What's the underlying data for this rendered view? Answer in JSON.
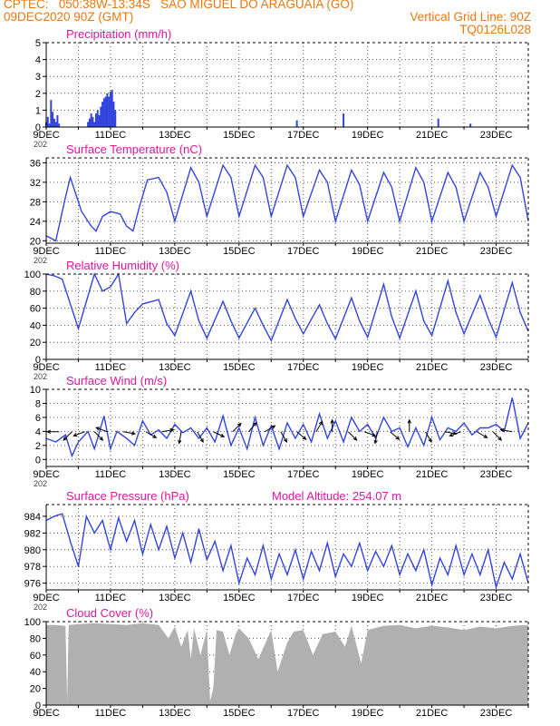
{
  "header": {
    "line1_left": "CPTEC:   050:38W-13:34S   SAO MIGUEL DO ARAGUAIA (GO)",
    "line2_left": "09DEC2020 90Z (GMT)",
    "line2_right": "Vertical Grid Line: 90Z",
    "line3_right": "TQ0126L028"
  },
  "colors": {
    "header": "#e8780e",
    "title": "#e0169f",
    "series": "#3344dd",
    "cloud": "#b0b0b0",
    "grid": "#555555"
  },
  "x_dates": [
    "9DEC",
    "11DEC",
    "13DEC",
    "15DEC",
    "17DEC",
    "19DEC",
    "21DEC",
    "23DEC"
  ],
  "x_year_stub": "202",
  "chart_data": [
    {
      "type": "bar",
      "title": "Precipitation (mm/h)",
      "xlabel": "",
      "ylabel": "",
      "x_range_days": [
        9,
        24
      ],
      "ylim": [
        0,
        5
      ],
      "yticks": [
        0,
        1,
        2,
        3,
        4,
        5
      ],
      "grid": true,
      "x": [
        9.0,
        9.05,
        9.1,
        9.15,
        9.2,
        9.25,
        9.3,
        9.35,
        9.4,
        10.3,
        10.35,
        10.4,
        10.45,
        10.5,
        10.55,
        10.6,
        10.65,
        10.7,
        10.75,
        10.8,
        10.85,
        10.9,
        10.95,
        11.0,
        11.05,
        11.1,
        11.15,
        16.8,
        18.25,
        21.2,
        22.2
      ],
      "values": [
        0.3,
        0.6,
        0.2,
        1.6,
        0.9,
        0.5,
        0.3,
        0.7,
        0.2,
        0.3,
        0.5,
        0.8,
        0.6,
        0.3,
        0.8,
        1.0,
        0.7,
        1.2,
        1.5,
        1.7,
        1.8,
        2.0,
        1.8,
        2.1,
        2.2,
        1.5,
        1.0,
        0.4,
        0.8,
        0.5,
        0.2
      ]
    },
    {
      "type": "line",
      "title": "Surface Temperature (nC)",
      "xlabel": "",
      "ylabel": "",
      "x_range_days": [
        9,
        24
      ],
      "ylim": [
        19.5,
        37
      ],
      "yticks": [
        20,
        24,
        28,
        32,
        36
      ],
      "grid": true,
      "x": [
        9.0,
        9.3,
        9.6,
        9.75,
        10.1,
        10.4,
        10.55,
        10.75,
        11.0,
        11.3,
        11.5,
        11.7,
        11.9,
        12.15,
        12.5,
        12.75,
        13.0,
        13.5,
        13.75,
        14.0,
        14.5,
        14.75,
        15.0,
        15.5,
        15.75,
        16.0,
        16.5,
        16.75,
        17.0,
        17.5,
        17.75,
        18.0,
        18.5,
        18.75,
        19.0,
        19.5,
        19.75,
        20.0,
        20.5,
        20.75,
        21.0,
        21.5,
        21.75,
        22.0,
        22.5,
        22.75,
        23.0,
        23.5,
        23.75,
        24.0
      ],
      "values": [
        21,
        20,
        29,
        33,
        26,
        23,
        22,
        25,
        26,
        25.5,
        23,
        22,
        27,
        32.5,
        33,
        30,
        24,
        35,
        32,
        25,
        35.5,
        33,
        25,
        35.5,
        33,
        25,
        35.5,
        33,
        25,
        34.5,
        32,
        24,
        34.5,
        31.5,
        24,
        34,
        31,
        24,
        35,
        32,
        24,
        34,
        31,
        24,
        34,
        31,
        25,
        35.5,
        33,
        24
      ]
    },
    {
      "type": "line",
      "title": "Relative Humidity (%)",
      "xlabel": "",
      "ylabel": "",
      "x_range_days": [
        9,
        24
      ],
      "ylim": [
        0,
        100
      ],
      "yticks": [
        0,
        20,
        40,
        60,
        80,
        100
      ],
      "grid": true,
      "x": [
        9.0,
        9.25,
        9.5,
        10.0,
        10.5,
        10.75,
        11.0,
        11.25,
        11.5,
        11.75,
        12.0,
        12.5,
        12.75,
        13.0,
        13.5,
        13.75,
        14.0,
        14.5,
        14.75,
        15.0,
        15.5,
        15.75,
        16.0,
        16.5,
        16.75,
        17.0,
        17.5,
        17.75,
        18.0,
        18.5,
        18.75,
        19.0,
        19.5,
        19.75,
        20.0,
        20.5,
        20.75,
        21.0,
        21.5,
        21.75,
        22.0,
        22.5,
        22.75,
        23.0,
        23.5,
        23.75,
        24.0
      ],
      "values": [
        100,
        98,
        94,
        36,
        100,
        80,
        85,
        100,
        42,
        55,
        65,
        70,
        42,
        28,
        80,
        45,
        25,
        68,
        45,
        25,
        60,
        40,
        22,
        70,
        48,
        30,
        64,
        42,
        24,
        72,
        45,
        26,
        88,
        50,
        25,
        80,
        45,
        28,
        92,
        55,
        30,
        75,
        48,
        26,
        90,
        55,
        33
      ]
    },
    {
      "type": "line",
      "title": "Surface Wind (m/s)",
      "xlabel": "",
      "ylabel": "",
      "x_range_days": [
        9,
        24
      ],
      "ylim": [
        -1,
        10
      ],
      "yticks": [
        0,
        2,
        4,
        6,
        8,
        10
      ],
      "grid": true,
      "x": [
        9.0,
        9.3,
        9.6,
        9.8,
        10.0,
        10.3,
        10.5,
        10.6,
        10.8,
        11.0,
        11.2,
        11.5,
        11.75,
        12.0,
        12.25,
        12.5,
        12.75,
        13.0,
        13.25,
        13.5,
        13.75,
        14.0,
        14.25,
        14.5,
        14.75,
        15.0,
        15.25,
        15.5,
        15.75,
        16.0,
        16.25,
        16.5,
        16.75,
        17.0,
        17.25,
        17.5,
        17.75,
        18.0,
        18.25,
        18.5,
        18.75,
        19.0,
        19.25,
        19.5,
        19.75,
        20.0,
        20.25,
        20.5,
        20.75,
        21.0,
        21.25,
        21.5,
        21.75,
        22.0,
        22.25,
        22.5,
        22.75,
        23.0,
        23.25,
        23.5,
        23.75,
        24.0
      ],
      "values": [
        3,
        2.5,
        3.5,
        0.5,
        2.5,
        4,
        1.5,
        3,
        6.2,
        1.5,
        4,
        3,
        2,
        5.5,
        3.5,
        4.2,
        3,
        5,
        3.8,
        4.5,
        3,
        4.5,
        2.5,
        6.2,
        2,
        4.5,
        1.5,
        6,
        2,
        4.8,
        1.5,
        5.2,
        3,
        5,
        2.5,
        6.5,
        3,
        5.5,
        2.5,
        6,
        4,
        5,
        3,
        6,
        4,
        4.5,
        1.8,
        4.5,
        2,
        6,
        2.8,
        4.5,
        4,
        5.2,
        3.5,
        4.5,
        4.5,
        5,
        4,
        8.8,
        3,
        5.2
      ],
      "arrow_directions_deg": [
        180,
        225,
        200,
        315,
        160,
        350,
        330,
        10,
        260,
        300,
        335,
        45,
        50,
        30,
        300,
        320,
        60,
        90,
        315,
        340,
        260,
        320,
        90,
        300,
        350,
        200,
        330,
        315,
        170
      ],
      "arrow_x": [
        9.4,
        9.8,
        10.2,
        10.5,
        10.9,
        11.4,
        12.1,
        12.6,
        13.2,
        13.7,
        14.2,
        14.8,
        15.3,
        15.8,
        16.3,
        16.8,
        17.4,
        17.9,
        18.4,
        18.9,
        19.3,
        19.7,
        20.3,
        20.8,
        21.4,
        21.9,
        22.4,
        22.9,
        23.5
      ]
    },
    {
      "type": "line",
      "title": "Surface Pressure (hPa)",
      "subtitle": "Model Altitude: 254.07 m",
      "xlabel": "",
      "ylabel": "",
      "x_range_days": [
        9,
        24
      ],
      "ylim": [
        975.2,
        985.4
      ],
      "yticks": [
        976,
        978,
        980,
        982,
        984
      ],
      "grid": true,
      "x": [
        9.0,
        9.25,
        9.5,
        9.75,
        10.0,
        10.25,
        10.5,
        10.75,
        11.0,
        11.25,
        11.5,
        11.75,
        12.0,
        12.25,
        12.5,
        12.75,
        13.0,
        13.25,
        13.5,
        13.75,
        14.0,
        14.25,
        14.5,
        14.75,
        15.0,
        15.25,
        15.5,
        15.75,
        16.0,
        16.25,
        16.5,
        16.75,
        17.0,
        17.25,
        17.5,
        17.75,
        18.0,
        18.25,
        18.5,
        18.75,
        19.0,
        19.25,
        19.5,
        19.75,
        20.0,
        20.25,
        20.5,
        20.75,
        21.0,
        21.25,
        21.5,
        21.75,
        22.0,
        22.25,
        22.5,
        22.75,
        23.0,
        23.25,
        23.5,
        23.75,
        24.0
      ],
      "values": [
        983.5,
        984,
        984.3,
        981,
        978,
        984,
        982,
        983.5,
        980,
        983.8,
        981,
        983.5,
        979.5,
        983,
        980,
        982.8,
        979,
        982,
        978.5,
        982.5,
        978.8,
        981,
        977.5,
        980.5,
        976,
        979,
        977,
        980.5,
        976.5,
        979.5,
        977,
        980,
        976.5,
        979.8,
        977.5,
        980.8,
        976.8,
        979.5,
        978,
        980.8,
        977.5,
        979.8,
        978,
        980.5,
        977,
        979.5,
        977.5,
        980,
        975.8,
        979,
        977,
        980.5,
        977,
        979.5,
        977,
        980,
        975.5,
        978.5,
        976.5,
        979.5,
        976
      ]
    },
    {
      "type": "area",
      "title": "Cloud Cover (%)",
      "xlabel": "",
      "ylabel": "",
      "x_range_days": [
        9,
        24
      ],
      "ylim": [
        0,
        100
      ],
      "yticks": [
        0,
        20,
        40,
        60,
        80,
        100
      ],
      "grid": true,
      "x": [
        9.0,
        9.3,
        9.6,
        9.65,
        9.7,
        10.0,
        10.5,
        11.0,
        11.5,
        12.0,
        12.5,
        12.8,
        13.0,
        13.2,
        13.4,
        13.5,
        13.6,
        13.8,
        14.0,
        14.1,
        14.2,
        14.3,
        14.5,
        14.7,
        14.9,
        15.0,
        15.3,
        15.6,
        16.0,
        16.2,
        16.5,
        16.7,
        17.0,
        17.3,
        17.6,
        18.0,
        18.3,
        18.5,
        18.8,
        19.0,
        19.5,
        20.0,
        20.5,
        21.0,
        21.5,
        22.0,
        22.5,
        23.0,
        23.5,
        24.0
      ],
      "values": [
        96,
        96,
        95,
        5,
        96,
        97,
        98,
        97,
        96,
        98,
        96,
        80,
        94,
        70,
        90,
        55,
        92,
        60,
        90,
        5,
        20,
        90,
        88,
        60,
        86,
        92,
        80,
        55,
        90,
        40,
        75,
        88,
        90,
        60,
        85,
        88,
        70,
        95,
        50,
        90,
        95,
        96,
        92,
        95,
        93,
        90,
        94,
        92,
        95,
        96
      ]
    }
  ]
}
